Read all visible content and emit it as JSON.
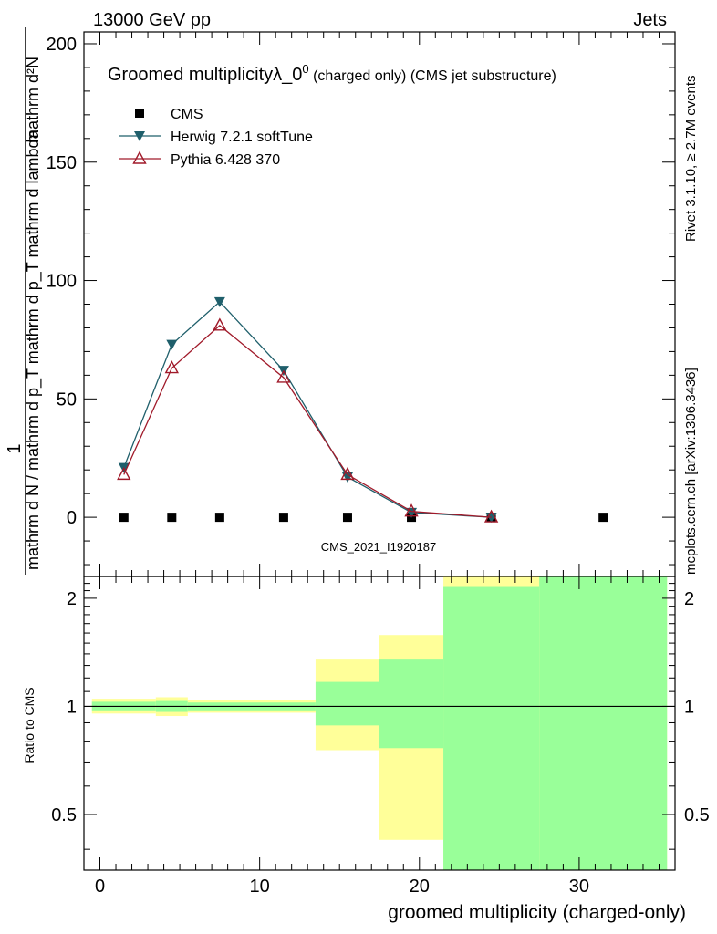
{
  "header": {
    "energy_label": "13000 GeV pp",
    "category_label": "Jets"
  },
  "side_labels": {
    "rivet": "Rivet 3.1.10, ≥ 2.7M events",
    "mcplots": "mcplots.cern.ch [arXiv:1306.3436]"
  },
  "chart_data": [
    {
      "type": "scatter",
      "title_main": "Groomed multiplicityλ_0",
      "title_sup": "0",
      "title_suffix": " (charged only) (CMS jet substructure)",
      "ylabel_numerator": "mathrm d²N",
      "ylabel_denominator": "mathrm d N / mathrm d p_T mathrm d p_T mathrm d lambda",
      "ylabel_factor": "1",
      "ylim": [
        -25,
        205
      ],
      "yticks": [
        0,
        50,
        100,
        150,
        200
      ],
      "xlim": [
        -1,
        36
      ],
      "watermark": "CMS_2021_I1920187",
      "legend_position": "top-left",
      "series": [
        {
          "name": "CMS",
          "color": "#000000",
          "marker": "square",
          "x": [
            1.5,
            4.5,
            7.5,
            11.5,
            15.5,
            19.5,
            24.5,
            31.5
          ],
          "y": [
            0,
            0,
            0,
            0,
            0,
            0,
            0,
            0
          ]
        },
        {
          "name": "Herwig 7.2.1 softTune",
          "color": "#1f5f6b",
          "marker": "triangle-down",
          "x": [
            1.5,
            4.5,
            7.5,
            11.5,
            15.5,
            19.5,
            24.5
          ],
          "y": [
            21,
            73,
            91,
            62,
            17,
            2,
            0
          ]
        },
        {
          "name": "Pythia 6.428 370",
          "color": "#a01a2a",
          "marker": "triangle-up-open",
          "x": [
            1.5,
            4.5,
            7.5,
            11.5,
            15.5,
            19.5,
            24.5
          ],
          "y": [
            18,
            63,
            81,
            59,
            18,
            2.5,
            0
          ]
        }
      ]
    },
    {
      "type": "area",
      "ylabel": "Ratio to CMS",
      "xlabel": "groomed multiplicity (charged-only)",
      "ylim": [
        0.35,
        2.3
      ],
      "yticks": [
        0.5,
        1,
        2
      ],
      "xticks": [
        0,
        10,
        20,
        30
      ],
      "reference_line": 1,
      "yellow_band_color": "#ffff99",
      "green_band_color": "#99ff99",
      "bins": [
        {
          "x0": -0.5,
          "x1": 3.5,
          "yellow_lo": 0.955,
          "yellow_hi": 1.05,
          "green_lo": 0.975,
          "green_hi": 1.03
        },
        {
          "x0": 3.5,
          "x1": 5.5,
          "yellow_lo": 0.94,
          "yellow_hi": 1.06,
          "green_lo": 0.965,
          "green_hi": 1.035
        },
        {
          "x0": 5.5,
          "x1": 13.5,
          "yellow_lo": 0.96,
          "yellow_hi": 1.04,
          "green_lo": 0.975,
          "green_hi": 1.025
        },
        {
          "x0": 13.5,
          "x1": 17.5,
          "yellow_lo": 0.755,
          "yellow_hi": 1.35,
          "green_lo": 0.885,
          "green_hi": 1.17
        },
        {
          "x0": 17.5,
          "x1": 21.5,
          "yellow_lo": 0.425,
          "yellow_hi": 1.58,
          "green_lo": 0.765,
          "green_hi": 1.35
        },
        {
          "x0": 21.5,
          "x1": 27.5,
          "yellow_lo": 0.35,
          "yellow_hi": 2.3,
          "green_lo": 0.35,
          "green_hi": 2.15
        },
        {
          "x0": 27.5,
          "x1": 35.5,
          "yellow_lo": 0.35,
          "yellow_hi": 2.3,
          "green_lo": 0.35,
          "green_hi": 2.3
        }
      ]
    }
  ]
}
